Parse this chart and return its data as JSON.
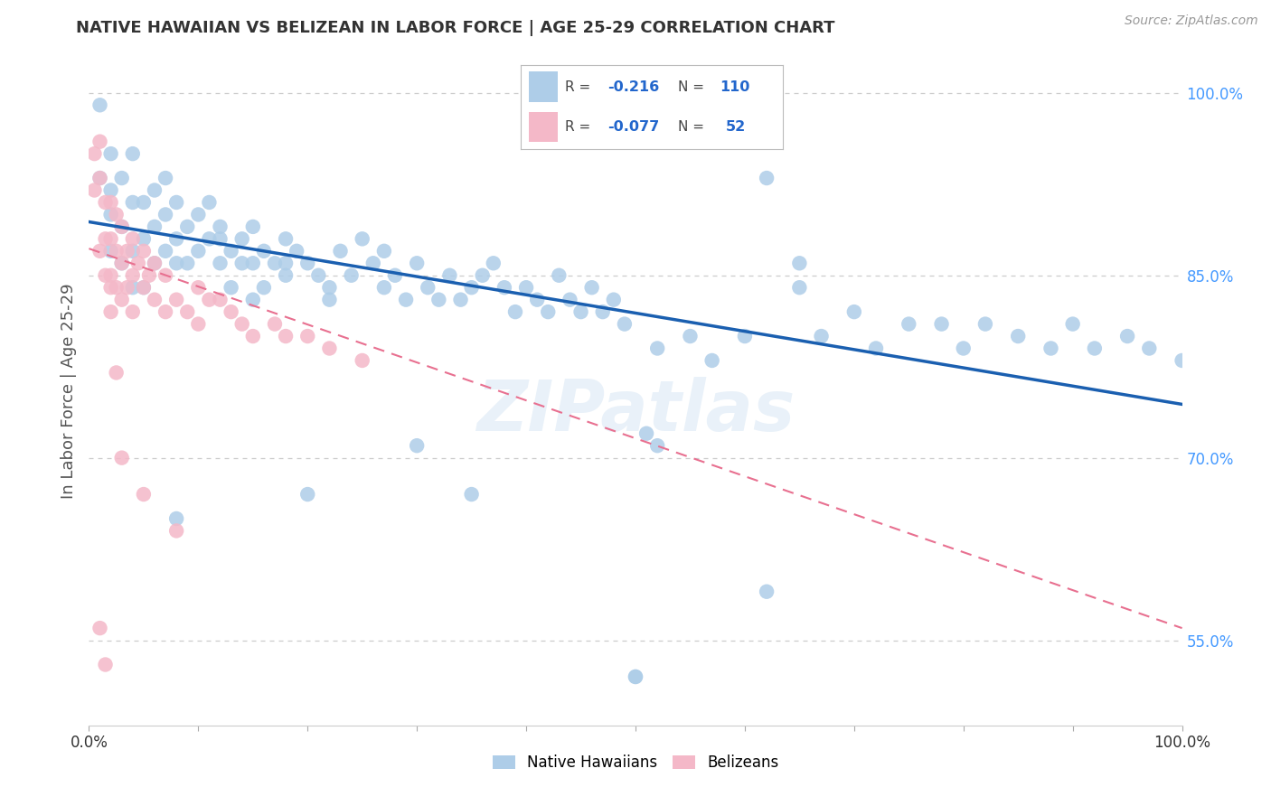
{
  "title": "NATIVE HAWAIIAN VS BELIZEAN IN LABOR FORCE | AGE 25-29 CORRELATION CHART",
  "source": "Source: ZipAtlas.com",
  "ylabel": "In Labor Force | Age 25-29",
  "xlim": [
    0.0,
    1.0
  ],
  "ylim": [
    0.48,
    1.03
  ],
  "blue_color": "#aecde8",
  "pink_color": "#f4b8c8",
  "blue_line_color": "#1a5fb0",
  "pink_line_color": "#e87090",
  "watermark": "ZIPatlas",
  "blue_r": "-0.216",
  "blue_n": "110",
  "pink_r": "-0.077",
  "pink_n": "52",
  "blue_scatter_x": [
    0.01,
    0.01,
    0.02,
    0.02,
    0.02,
    0.02,
    0.03,
    0.03,
    0.03,
    0.04,
    0.04,
    0.04,
    0.04,
    0.05,
    0.05,
    0.05,
    0.06,
    0.06,
    0.06,
    0.07,
    0.07,
    0.07,
    0.08,
    0.08,
    0.08,
    0.09,
    0.09,
    0.1,
    0.1,
    0.11,
    0.11,
    0.12,
    0.12,
    0.13,
    0.13,
    0.14,
    0.14,
    0.15,
    0.15,
    0.16,
    0.16,
    0.17,
    0.18,
    0.18,
    0.19,
    0.2,
    0.21,
    0.22,
    0.23,
    0.24,
    0.25,
    0.26,
    0.27,
    0.27,
    0.28,
    0.29,
    0.3,
    0.31,
    0.32,
    0.33,
    0.34,
    0.35,
    0.36,
    0.37,
    0.38,
    0.39,
    0.4,
    0.41,
    0.42,
    0.43,
    0.44,
    0.45,
    0.46,
    0.47,
    0.48,
    0.49,
    0.5,
    0.5,
    0.51,
    0.52,
    0.52,
    0.55,
    0.57,
    0.6,
    0.62,
    0.65,
    0.67,
    0.7,
    0.72,
    0.75,
    0.78,
    0.8,
    0.82,
    0.85,
    0.88,
    0.9,
    0.92,
    0.95,
    0.97,
    1.0,
    0.62,
    0.65,
    0.2,
    0.08,
    0.12,
    0.15,
    0.18,
    0.22,
    0.3,
    0.35
  ],
  "blue_scatter_y": [
    0.99,
    0.93,
    0.95,
    0.92,
    0.87,
    0.9,
    0.93,
    0.89,
    0.86,
    0.95,
    0.91,
    0.87,
    0.84,
    0.91,
    0.88,
    0.84,
    0.92,
    0.89,
    0.86,
    0.93,
    0.9,
    0.87,
    0.91,
    0.88,
    0.86,
    0.89,
    0.86,
    0.9,
    0.87,
    0.91,
    0.88,
    0.89,
    0.86,
    0.87,
    0.84,
    0.88,
    0.86,
    0.89,
    0.86,
    0.87,
    0.84,
    0.86,
    0.88,
    0.85,
    0.87,
    0.86,
    0.85,
    0.84,
    0.87,
    0.85,
    0.88,
    0.86,
    0.87,
    0.84,
    0.85,
    0.83,
    0.86,
    0.84,
    0.83,
    0.85,
    0.83,
    0.84,
    0.85,
    0.86,
    0.84,
    0.82,
    0.84,
    0.83,
    0.82,
    0.85,
    0.83,
    0.82,
    0.84,
    0.82,
    0.83,
    0.81,
    0.52,
    0.52,
    0.72,
    0.71,
    0.79,
    0.8,
    0.78,
    0.8,
    0.59,
    0.84,
    0.8,
    0.82,
    0.79,
    0.81,
    0.81,
    0.79,
    0.81,
    0.8,
    0.79,
    0.81,
    0.79,
    0.8,
    0.79,
    0.78,
    0.93,
    0.86,
    0.67,
    0.65,
    0.88,
    0.83,
    0.86,
    0.83,
    0.71,
    0.67
  ],
  "pink_scatter_x": [
    0.005,
    0.005,
    0.01,
    0.01,
    0.01,
    0.015,
    0.015,
    0.015,
    0.02,
    0.02,
    0.02,
    0.02,
    0.025,
    0.025,
    0.025,
    0.03,
    0.03,
    0.03,
    0.035,
    0.035,
    0.04,
    0.04,
    0.04,
    0.045,
    0.05,
    0.05,
    0.055,
    0.06,
    0.06,
    0.07,
    0.07,
    0.08,
    0.09,
    0.1,
    0.1,
    0.11,
    0.12,
    0.13,
    0.14,
    0.15,
    0.17,
    0.18,
    0.2,
    0.22,
    0.25,
    0.01,
    0.015,
    0.02,
    0.025,
    0.03,
    0.05,
    0.08
  ],
  "pink_scatter_y": [
    0.95,
    0.92,
    0.96,
    0.93,
    0.87,
    0.91,
    0.88,
    0.85,
    0.91,
    0.88,
    0.85,
    0.82,
    0.9,
    0.87,
    0.84,
    0.89,
    0.86,
    0.83,
    0.87,
    0.84,
    0.88,
    0.85,
    0.82,
    0.86,
    0.87,
    0.84,
    0.85,
    0.83,
    0.86,
    0.85,
    0.82,
    0.83,
    0.82,
    0.84,
    0.81,
    0.83,
    0.83,
    0.82,
    0.81,
    0.8,
    0.81,
    0.8,
    0.8,
    0.79,
    0.78,
    0.56,
    0.53,
    0.84,
    0.77,
    0.7,
    0.67,
    0.64
  ],
  "blue_trendline_x": [
    0.0,
    1.0
  ],
  "blue_trendline_y": [
    0.894,
    0.744
  ],
  "pink_trendline_x": [
    0.0,
    1.0
  ],
  "pink_trendline_y": [
    0.872,
    0.56
  ]
}
